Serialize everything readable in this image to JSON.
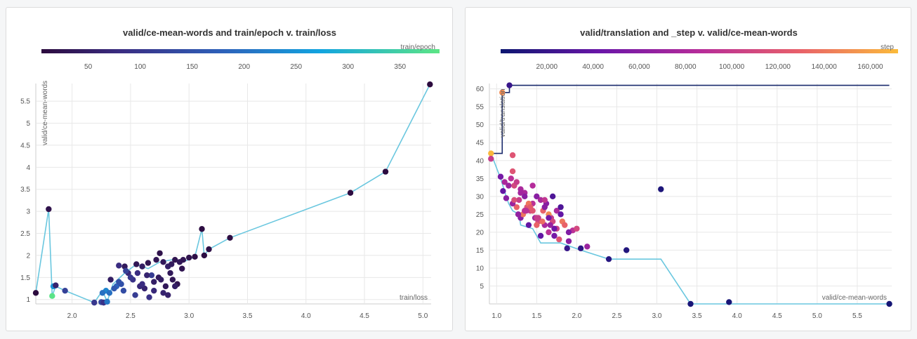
{
  "chart_data": [
    {
      "type": "scatter",
      "title": "valid/ce-mean-words and train/epoch v. train/loss",
      "xlabel": "train/loss",
      "ylabel": "valid/ce-mean-words",
      "colorbar": {
        "label": "train/epoch",
        "ticks": [
          50,
          100,
          150,
          200,
          250,
          300,
          350
        ],
        "min": 5,
        "max": 388
      },
      "xlim": [
        1.69,
        5.07
      ],
      "ylim": [
        0.9,
        5.9
      ],
      "xticks": [
        2.0,
        2.5,
        3.0,
        3.5,
        4.0,
        4.5,
        5.0
      ],
      "yticks": [
        1,
        1.5,
        2,
        2.5,
        3,
        3.5,
        4,
        4.5,
        5,
        5.5
      ],
      "grid": true,
      "line_color": "#6ac7df",
      "line": {
        "x": [
          1.69,
          1.8,
          1.83,
          1.86,
          1.94,
          2.19,
          2.26,
          2.3,
          2.35,
          2.45,
          2.55,
          2.65,
          2.75,
          2.85,
          2.95,
          3.05,
          3.11,
          3.13,
          3.17,
          3.35,
          4.38,
          4.68,
          5.06
        ],
        "y": [
          1.15,
          3.05,
          1.08,
          1.3,
          1.2,
          0.93,
          1.2,
          0.95,
          1.35,
          1.6,
          1.8,
          1.7,
          1.85,
          1.9,
          1.85,
          1.97,
          2.6,
          2.0,
          2.14,
          2.4,
          3.42,
          3.9,
          5.88
        ]
      },
      "points": {
        "x": [
          1.69,
          1.8,
          1.83,
          1.84,
          1.86,
          1.94,
          2.19,
          2.25,
          2.27,
          2.29,
          2.26,
          2.3,
          2.33,
          2.38,
          2.4,
          2.45,
          2.48,
          2.55,
          2.6,
          2.65,
          2.68,
          2.72,
          2.75,
          2.78,
          2.82,
          2.85,
          2.88,
          2.92,
          2.95,
          3.0,
          3.05,
          3.11,
          3.13,
          3.17,
          3.35,
          4.38,
          4.68,
          5.06,
          2.32,
          2.36,
          2.42,
          2.52,
          2.58,
          2.62,
          2.7,
          2.74,
          2.8,
          2.86,
          2.9,
          2.46,
          2.5,
          2.56,
          2.64,
          2.76,
          2.84,
          2.94,
          2.44,
          2.54,
          2.66,
          2.78,
          2.88,
          2.4,
          2.6,
          2.7,
          2.82
        ],
        "y": [
          1.15,
          3.05,
          1.08,
          1.3,
          1.32,
          1.2,
          0.93,
          0.94,
          0.93,
          1.2,
          1.15,
          0.95,
          1.45,
          1.3,
          1.77,
          1.75,
          1.6,
          1.8,
          1.75,
          1.83,
          1.55,
          1.9,
          2.05,
          1.85,
          1.75,
          1.8,
          1.9,
          1.85,
          1.9,
          1.95,
          1.97,
          2.6,
          2.0,
          2.14,
          2.4,
          3.42,
          3.9,
          5.88,
          1.15,
          1.25,
          1.35,
          1.45,
          1.3,
          1.25,
          1.4,
          1.5,
          1.3,
          1.45,
          1.35,
          1.65,
          1.5,
          1.6,
          1.55,
          1.45,
          1.6,
          1.7,
          1.2,
          1.1,
          1.05,
          1.15,
          1.3,
          1.4,
          1.35,
          1.2,
          1.1
        ],
        "epoch": [
          5,
          20,
          385,
          250,
          60,
          120,
          100,
          130,
          90,
          230,
          200,
          210,
          45,
          180,
          80,
          40,
          70,
          30,
          45,
          25,
          110,
          30,
          20,
          35,
          50,
          40,
          25,
          35,
          30,
          22,
          15,
          10,
          12,
          14,
          10,
          8,
          6,
          5,
          200,
          160,
          150,
          90,
          70,
          60,
          50,
          40,
          35,
          30,
          25,
          120,
          100,
          80,
          60,
          45,
          35,
          25,
          140,
          110,
          90,
          60,
          50,
          150,
          80,
          70,
          55
        ]
      }
    },
    {
      "type": "scatter",
      "title": "valid/translation and _step v. valid/ce-mean-words",
      "xlabel": "valid/ce-mean-words",
      "ylabel": "valid/translation",
      "colorbar": {
        "label": "step",
        "ticks": [
          "20,000",
          "40,000",
          "60,000",
          "80,000",
          "100,000",
          "120,000",
          "140,000",
          "160,000"
        ],
        "tick_values": [
          20000,
          40000,
          60000,
          80000,
          100000,
          120000,
          140000,
          160000
        ],
        "min": 0,
        "max": 172000
      },
      "xlim": [
        0.91,
        5.93
      ],
      "ylim": [
        0,
        61.5
      ],
      "xticks": [
        1.0,
        1.5,
        2.0,
        2.5,
        3.0,
        3.5,
        4.0,
        4.5,
        5.0,
        5.5
      ],
      "yticks": [
        5,
        10,
        15,
        20,
        25,
        30,
        35,
        40,
        45,
        50,
        55,
        60
      ],
      "grid": true,
      "line_color": "#6ac7df",
      "step_line_color": "#1a2a6c",
      "line": {
        "x": [
          0.93,
          1.05,
          1.12,
          1.15,
          1.2,
          1.28,
          1.3,
          1.45,
          1.55,
          1.8,
          2.05,
          2.4,
          3.05,
          3.42,
          3.9,
          5.9
        ],
        "y": [
          42,
          35,
          30,
          28,
          26,
          25,
          22,
          21,
          17,
          17,
          15,
          12.5,
          12.5,
          0,
          0,
          0
        ]
      },
      "step_line": {
        "x": [
          0.93,
          1.07,
          1.07,
          1.16,
          1.16,
          5.9
        ],
        "y": [
          42,
          42,
          59,
          59,
          61,
          61
        ]
      },
      "points": {
        "x": [
          0.93,
          0.93,
          1.07,
          1.16,
          1.2,
          1.05,
          1.08,
          1.1,
          1.12,
          1.15,
          1.18,
          1.22,
          1.25,
          1.28,
          1.3,
          1.33,
          1.35,
          1.38,
          1.4,
          1.42,
          1.45,
          1.48,
          1.5,
          1.52,
          1.55,
          1.58,
          1.6,
          1.62,
          1.65,
          1.68,
          1.7,
          1.72,
          1.75,
          1.78,
          1.8,
          1.82,
          1.85,
          1.88,
          1.9,
          1.95,
          2.0,
          2.05,
          2.13,
          2.4,
          2.62,
          3.05,
          3.42,
          3.9,
          5.9,
          1.2,
          1.25,
          1.3,
          1.35,
          1.4,
          1.45,
          1.5,
          1.55,
          1.6,
          1.65,
          1.7,
          1.2,
          1.35,
          1.5,
          1.65,
          1.8,
          1.3,
          1.45,
          1.6,
          1.75,
          1.9,
          1.27,
          1.42,
          1.57,
          1.72,
          1.22,
          1.37,
          1.52,
          1.67
        ],
        "y": [
          42,
          40.5,
          59,
          61,
          41.5,
          35.5,
          31.5,
          34,
          29.5,
          33,
          35,
          33,
          27,
          29,
          24,
          25,
          31,
          27,
          22,
          26,
          28,
          24,
          30,
          23,
          19,
          26,
          22,
          28,
          20,
          24,
          30,
          19,
          26,
          18,
          25,
          23,
          22,
          15.5,
          17.5,
          20.5,
          21,
          15.5,
          16,
          12.5,
          15,
          32,
          0,
          0.5,
          0,
          37,
          34,
          32,
          30,
          28,
          26,
          24,
          29,
          27,
          25,
          23,
          28,
          26,
          22,
          24,
          27,
          31,
          33,
          29,
          21,
          20,
          25,
          27,
          23,
          21,
          29,
          26,
          24,
          22
        ],
        "step": [
          170000,
          100000,
          150000,
          20000,
          120000,
          50000,
          40000,
          80000,
          60000,
          70000,
          90000,
          110000,
          130000,
          100000,
          60000,
          140000,
          80000,
          120000,
          40000,
          100000,
          90000,
          70000,
          60000,
          110000,
          40000,
          130000,
          80000,
          60000,
          90000,
          100000,
          30000,
          50000,
          80000,
          120000,
          40000,
          140000,
          130000,
          20000,
          60000,
          90000,
          110000,
          15000,
          70000,
          12000,
          10000,
          8000,
          6000,
          5000,
          4000,
          120000,
          100000,
          80000,
          60000,
          140000,
          120000,
          100000,
          80000,
          60000,
          150000,
          110000,
          70000,
          90000,
          130000,
          50000,
          30000,
          75000,
          85000,
          95000,
          105000,
          55000,
          65000,
          125000,
          135000,
          45000,
          115000,
          90000,
          100000,
          70000
        ]
      }
    }
  ]
}
